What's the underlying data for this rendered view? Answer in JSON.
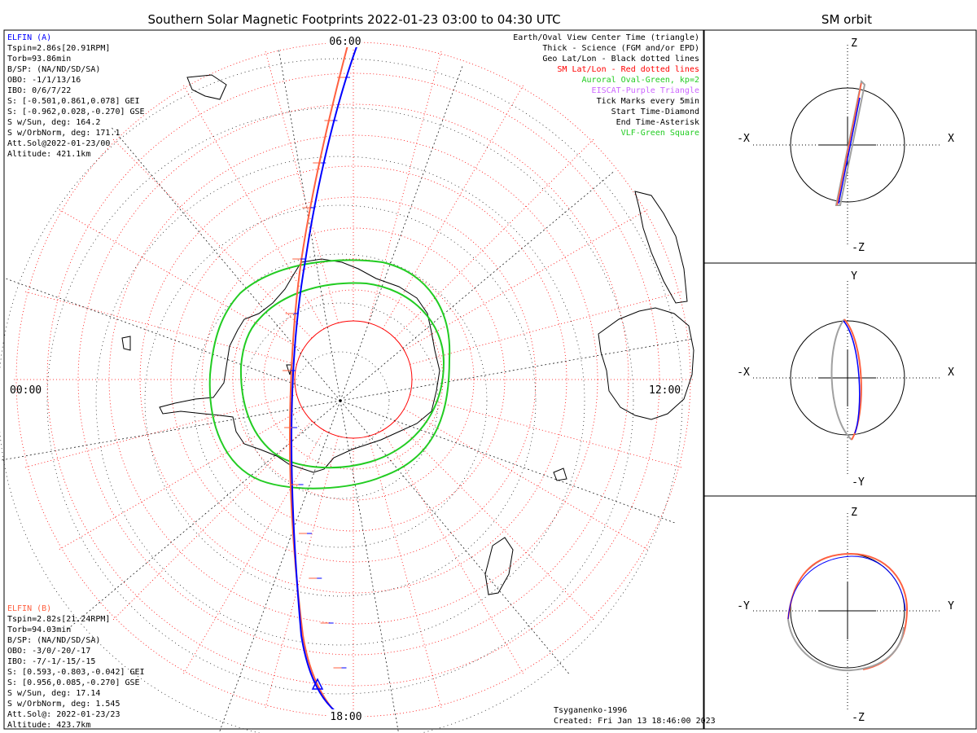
{
  "main_title": "Southern Solar Magnetic Footprints 2022-01-23 03:00 to 04:30 UTC",
  "orbit_title": "SM orbit",
  "map": {
    "time_labels": {
      "top": "06:00",
      "left": "00:00",
      "right": "12:00",
      "bottom": "18:00"
    }
  },
  "elfin_a": {
    "name": "ELFIN (A)",
    "color": "#0000ff",
    "lines": [
      "Tspin=2.86s[20.91RPM]",
      "Torb=93.86min",
      "B/SP: (NA/ND/SD/SA)",
      "OBO: -1/1/13/16",
      "IBO: 0/6/7/22",
      "S: [-0.501,0.861,0.078] GEI",
      "S: [-0.962,0.028,-0.270] GSE",
      "S w/Sun, deg: 164.2",
      "S w/OrbNorm, deg: 171.1",
      "Att.Sol@2022-01-23/00",
      "Altitude: 421.1km"
    ]
  },
  "elfin_b": {
    "name": "ELFIN (B)",
    "color": "#ff6040",
    "lines": [
      "Tspin=2.82s[21.24RPM]",
      "Torb=94.03min",
      "B/SP: (NA/ND/SD/SA)",
      "OBO: -3/0/-20/-17",
      "IBO: -7/-1/-15/-15",
      "S: [0.593,-0.803,-0.042] GEI",
      "S: [0.956,0.085,-0.270] GSE",
      "S w/Sun, deg: 17.14",
      "S w/OrbNorm, deg: 1.545",
      "Att.Sol@: 2022-01-23/23",
      "Altitude: 423.7km"
    ]
  },
  "legend": [
    {
      "text": "Earth/Oval View Center Time (triangle)",
      "color": "#000000"
    },
    {
      "text": "Thick - Science (FGM and/or EPD)",
      "color": "#000000"
    },
    {
      "text": "Geo Lat/Lon - Black dotted lines",
      "color": "#000000"
    },
    {
      "text": "SM Lat/Lon - Red dotted lines",
      "color": "#ff0000"
    },
    {
      "text": "Auroral Oval-Green, kp=2",
      "color": "#22cc22"
    },
    {
      "text": "EISCAT-Purple Triangle",
      "color": "#cc66ff"
    },
    {
      "text": "Tick Marks every 5min",
      "color": "#000000"
    },
    {
      "text": "Start Time-Diamond",
      "color": "#000000"
    },
    {
      "text": "End Time-Asterisk",
      "color": "#000000"
    },
    {
      "text": "VLF-Green Square",
      "color": "#22cc22"
    }
  ],
  "footer": {
    "model": "Tsyganenko-1996",
    "created": "Created: Fri Jan 13 18:46:00 2023"
  },
  "orbit_panels": [
    {
      "top": "Z",
      "bottom": "-Z",
      "left": "-X",
      "right": "X"
    },
    {
      "top": "Y",
      "bottom": "-Y",
      "left": "-X",
      "right": "X"
    },
    {
      "top": "Z",
      "bottom": "-Z",
      "left": "-Y",
      "right": "Y"
    }
  ],
  "colors": {
    "sm_grid": "#ff0000",
    "oval": "#22cc22",
    "track_a": "#0000ff",
    "track_b": "#ff6040",
    "orbit_gray": "#a0a0a0"
  }
}
